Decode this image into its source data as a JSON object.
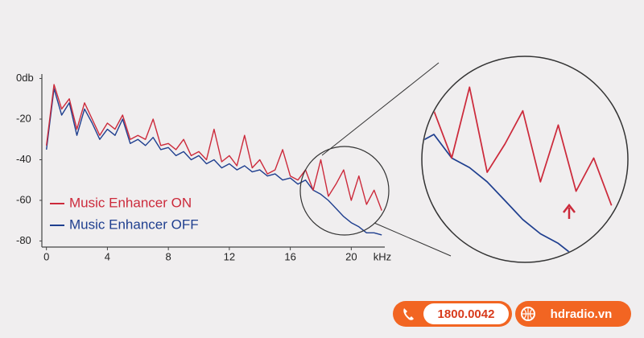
{
  "chart_data": {
    "type": "line",
    "x": [
      0,
      0.5,
      1,
      1.5,
      2,
      2.5,
      3,
      3.5,
      4,
      4.5,
      5,
      5.5,
      6,
      6.5,
      7,
      7.5,
      8,
      8.5,
      9,
      9.5,
      10,
      10.5,
      11,
      11.5,
      12,
      12.5,
      13,
      13.5,
      14,
      14.5,
      15,
      15.5,
      16,
      16.5,
      17,
      17.5,
      18,
      18.5,
      19,
      19.5,
      20,
      20.5,
      21,
      21.5,
      22
    ],
    "series": [
      {
        "name": "Music Enhancer ON",
        "color": "#cc2a3b",
        "values": [
          -33,
          -3,
          -15,
          -10,
          -25,
          -12,
          -20,
          -28,
          -22,
          -25,
          -18,
          -30,
          -28,
          -30,
          -20,
          -33,
          -32,
          -35,
          -30,
          -38,
          -36,
          -40,
          -25,
          -41,
          -38,
          -43,
          -28,
          -44,
          -40,
          -47,
          -45,
          -35,
          -48,
          -50,
          -45,
          -55,
          -40,
          -58,
          -52,
          -45,
          -60,
          -48,
          -62,
          -55,
          -65
        ]
      },
      {
        "name": "Music Enhancer OFF",
        "color": "#1f3f8f",
        "values": [
          -35,
          -5,
          -18,
          -12,
          -28,
          -15,
          -22,
          -30,
          -25,
          -28,
          -20,
          -32,
          -30,
          -33,
          -29,
          -35,
          -34,
          -38,
          -36,
          -40,
          -38,
          -42,
          -40,
          -44,
          -42,
          -45,
          -43,
          -46,
          -45,
          -48,
          -47,
          -50,
          -49,
          -52,
          -50,
          -55,
          -57,
          -60,
          -64,
          -68,
          -71,
          -73,
          -76,
          -76,
          -77
        ]
      }
    ],
    "xlim": [
      -0.3,
      22.2
    ],
    "ylim": [
      -83,
      1
    ],
    "xticks": [
      0,
      4,
      8,
      12,
      16,
      20
    ],
    "yticks": [
      {
        "value": 0,
        "label": "0db"
      },
      -20,
      -40,
      -60,
      -80
    ],
    "x_label": "kHz",
    "grid": false,
    "legend": "lower left"
  },
  "footer": {
    "phone": "1800.0042",
    "website": "hdradio.vn"
  }
}
